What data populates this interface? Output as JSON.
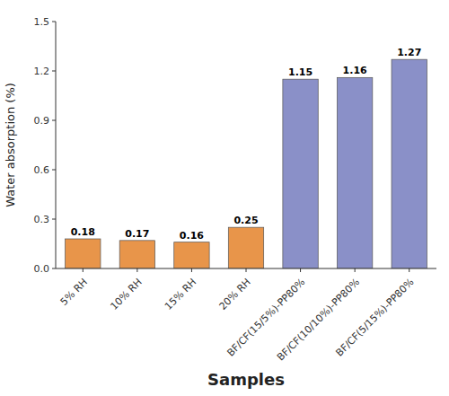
{
  "chart_data": {
    "type": "bar",
    "categories": [
      "5% RH",
      "10% RH",
      "15% RH",
      "20% RH",
      "BF/CF(15/5%)-PP80%",
      "BF/CF(10/10%)-PP80%",
      "BF/CF(5/15%)-PP80%"
    ],
    "values": [
      0.18,
      0.17,
      0.16,
      0.25,
      1.15,
      1.16,
      1.27
    ],
    "colors": [
      "#E8954A",
      "#E8954A",
      "#E8954A",
      "#E8954A",
      "#8A90C8",
      "#8A90C8",
      "#8A90C8"
    ],
    "xlabel": "Samples",
    "ylabel": "Water absorption (%)",
    "ylim": [
      0.0,
      1.5
    ],
    "yticks": [
      {
        "value": 0.0,
        "label": "0.0"
      },
      0.3,
      0.6,
      0.9,
      1.2,
      1.5
    ],
    "data_labels": true,
    "grid": false
  }
}
